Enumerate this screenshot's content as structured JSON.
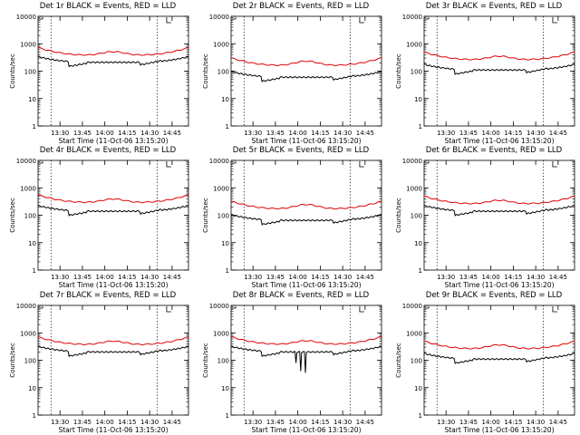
{
  "common": {
    "xlabel": "Start Time (11-Oct-06 13:15:20)",
    "ylabel": "Counts/sec",
    "x_tick_labels": [
      "13:30",
      "13:45",
      "14:00",
      "14:15",
      "14:30",
      "14:45"
    ],
    "y_tick_labels": [
      "1",
      "10",
      "100",
      "1000",
      "10000"
    ],
    "legend_text": "BLACK = Events, RED = LLD"
  },
  "colors": {
    "events": "#000000",
    "lld": "#e00000",
    "axes": "#000000",
    "background": "#ffffff"
  },
  "chart_data": [
    {
      "type": "line",
      "title": "Det 1r BLACK = Events, RED = LLD",
      "x": [
        "13:15:20",
        "14:56:00"
      ],
      "ylim": [
        1,
        10000
      ],
      "y_scale": "log",
      "series": [
        {
          "name": "Events",
          "color": "#000000",
          "level": 210,
          "swing": 0.25,
          "dips": []
        },
        {
          "name": "LLD",
          "color": "#e00000",
          "level": 380,
          "swing": 0.35
        }
      ],
      "markers": [
        "13:24",
        "14:35"
      ]
    },
    {
      "type": "line",
      "title": "Det 2r BLACK = Events, RED = LLD",
      "x": [
        "13:15:20",
        "14:56:00"
      ],
      "ylim": [
        1,
        10000
      ],
      "y_scale": "log",
      "series": [
        {
          "name": "Events",
          "color": "#000000",
          "level": 60,
          "swing": 0.35,
          "dips": []
        },
        {
          "name": "LLD",
          "color": "#e00000",
          "level": 160,
          "swing": 0.45
        }
      ],
      "markers": [
        "13:24",
        "14:35"
      ]
    },
    {
      "type": "line",
      "title": "Det 3r BLACK = Events, RED = LLD",
      "x": [
        "13:15:20",
        "14:56:00"
      ],
      "ylim": [
        1,
        10000
      ],
      "y_scale": "log",
      "series": [
        {
          "name": "Events",
          "color": "#000000",
          "level": 110,
          "swing": 0.3,
          "dips": []
        },
        {
          "name": "LLD",
          "color": "#e00000",
          "level": 260,
          "swing": 0.35
        }
      ],
      "markers": [
        "13:24",
        "14:35"
      ]
    },
    {
      "type": "line",
      "title": "Det 4r BLACK = Events, RED = LLD",
      "x": [
        "13:15:20",
        "14:56:00"
      ],
      "ylim": [
        1,
        10000
      ],
      "y_scale": "log",
      "series": [
        {
          "name": "Events",
          "color": "#000000",
          "level": 140,
          "swing": 0.25,
          "dips": []
        },
        {
          "name": "LLD",
          "color": "#e00000",
          "level": 290,
          "swing": 0.35
        }
      ],
      "markers": [
        "13:24",
        "14:35"
      ]
    },
    {
      "type": "line",
      "title": "Det 5r BLACK = Events, RED = LLD",
      "x": [
        "13:15:20",
        "14:56:00"
      ],
      "ylim": [
        1,
        10000
      ],
      "y_scale": "log",
      "series": [
        {
          "name": "Events",
          "color": "#000000",
          "level": 65,
          "swing": 0.4,
          "dips": []
        },
        {
          "name": "LLD",
          "color": "#e00000",
          "level": 170,
          "swing": 0.45
        }
      ],
      "markers": [
        "13:24",
        "14:35"
      ]
    },
    {
      "type": "line",
      "title": "Det 6r BLACK = Events, RED = LLD",
      "x": [
        "13:15:20",
        "14:56:00"
      ],
      "ylim": [
        1,
        10000
      ],
      "y_scale": "log",
      "series": [
        {
          "name": "Events",
          "color": "#000000",
          "level": 140,
          "swing": 0.25,
          "dips": []
        },
        {
          "name": "LLD",
          "color": "#e00000",
          "level": 260,
          "swing": 0.35
        }
      ],
      "markers": [
        "13:24",
        "14:35"
      ]
    },
    {
      "type": "line",
      "title": "Det 7r BLACK = Events, RED = LLD",
      "x": [
        "13:15:20",
        "14:56:00"
      ],
      "ylim": [
        1,
        10000
      ],
      "y_scale": "log",
      "series": [
        {
          "name": "Events",
          "color": "#000000",
          "level": 200,
          "swing": 0.25,
          "dips": []
        },
        {
          "name": "LLD",
          "color": "#e00000",
          "level": 370,
          "swing": 0.35
        }
      ],
      "markers": [
        "13:24",
        "14:35"
      ]
    },
    {
      "type": "line",
      "title": "Det 8r BLACK = Events, RED = LLD",
      "x": [
        "13:15:20",
        "14:56:00"
      ],
      "ylim": [
        1,
        10000
      ],
      "y_scale": "log",
      "series": [
        {
          "name": "Events",
          "color": "#000000",
          "level": 200,
          "swing": 0.25,
          "dips": [
            {
              "x": "13:59",
              "y": 80
            },
            {
              "x": "14:02",
              "y": 40
            },
            {
              "x": "14:05",
              "y": 35
            }
          ]
        },
        {
          "name": "LLD",
          "color": "#e00000",
          "level": 380,
          "swing": 0.35
        }
      ],
      "markers": [
        "13:24",
        "14:35"
      ]
    },
    {
      "type": "line",
      "title": "Det 9r BLACK = Events, RED = LLD",
      "x": [
        "13:15:20",
        "14:56:00"
      ],
      "ylim": [
        1,
        10000
      ],
      "y_scale": "log",
      "series": [
        {
          "name": "Events",
          "color": "#000000",
          "level": 110,
          "swing": 0.3,
          "dips": []
        },
        {
          "name": "LLD",
          "color": "#e00000",
          "level": 260,
          "swing": 0.4
        }
      ],
      "markers": [
        "13:24",
        "14:35"
      ]
    }
  ]
}
